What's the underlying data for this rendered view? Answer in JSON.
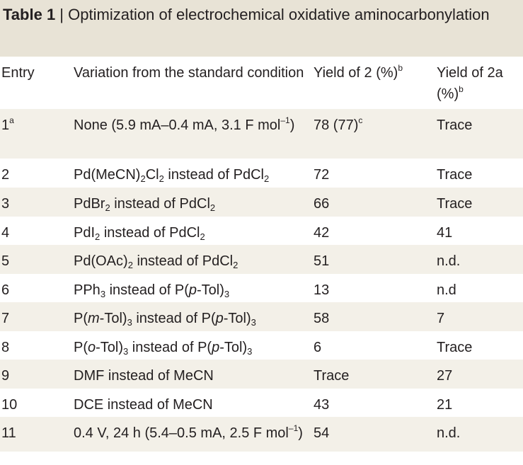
{
  "table": {
    "title_label": "Table 1",
    "title_separator": " | ",
    "title_text": "Optimization of electrochemical oxidative aminocarbonylation",
    "headers": {
      "entry": "Entry",
      "variation": "Variation from the standard condition",
      "yield2": "Yield of 2 (%)",
      "yield2_note": "b",
      "yield2a": "Yield of 2a (%)",
      "yield2a_note": "b"
    },
    "rows": [
      {
        "entry": "1",
        "entry_note": "a",
        "variation": "None (5.9 mA–0.4 mA, 3.1 F mol⁻¹)",
        "yield2": "78 (77)",
        "yield2_note": "c",
        "yield2a": "Trace"
      },
      {
        "entry": "2",
        "variation": "Pd(MeCN)₂Cl₂ instead of PdCl₂",
        "yield2": "72",
        "yield2a": "Trace"
      },
      {
        "entry": "3",
        "variation": "PdBr₂ instead of PdCl₂",
        "yield2": "66",
        "yield2a": "Trace"
      },
      {
        "entry": "4",
        "variation": "PdI₂ instead of PdCl₂",
        "yield2": "42",
        "yield2a": "41"
      },
      {
        "entry": "5",
        "variation": "Pd(OAc)₂ instead of PdCl₂",
        "yield2": "51",
        "yield2a": "n.d."
      },
      {
        "entry": "6",
        "variation": "PPh₃ instead of P(p-Tol)₃",
        "yield2": "13",
        "yield2a": "n.d"
      },
      {
        "entry": "7",
        "variation": "P(m-Tol)₃ instead of P(p-Tol)₃",
        "yield2": "58",
        "yield2a": "7"
      },
      {
        "entry": "8",
        "variation": "P(o-Tol)₃ instead of P(p-Tol)₃",
        "yield2": "6",
        "yield2a": "Trace"
      },
      {
        "entry": "9",
        "variation": "DMF instead of MeCN",
        "yield2": "Trace",
        "yield2a": "27"
      },
      {
        "entry": "10",
        "variation": "DCE instead of MeCN",
        "yield2": "43",
        "yield2a": "21"
      },
      {
        "entry": "11",
        "variation": "0.4 V, 24 h (5.4–0.5 mA, 2.5 F mol⁻¹)",
        "yield2": "54",
        "yield2a": "n.d."
      }
    ]
  },
  "colors": {
    "title_band": "#e8e3d6",
    "shaded_row": "#f3f0e8",
    "text": "#231f20"
  }
}
